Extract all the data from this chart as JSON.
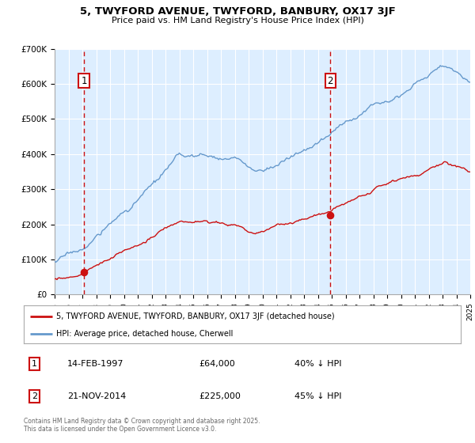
{
  "title": "5, TWYFORD AVENUE, TWYFORD, BANBURY, OX17 3JF",
  "subtitle": "Price paid vs. HM Land Registry's House Price Index (HPI)",
  "legend_line1": "5, TWYFORD AVENUE, TWYFORD, BANBURY, OX17 3JF (detached house)",
  "legend_line2": "HPI: Average price, detached house, Cherwell",
  "annotation1_label": "1",
  "annotation1_date": "14-FEB-1997",
  "annotation1_price": "£64,000",
  "annotation1_hpi": "40% ↓ HPI",
  "annotation2_label": "2",
  "annotation2_date": "21-NOV-2014",
  "annotation2_price": "£225,000",
  "annotation2_hpi": "45% ↓ HPI",
  "footer": "Contains HM Land Registry data © Crown copyright and database right 2025.\nThis data is licensed under the Open Government Licence v3.0.",
  "plot_bg_color": "#ddeeff",
  "grid_color": "#ffffff",
  "hpi_line_color": "#6699cc",
  "price_line_color": "#cc1111",
  "dashed_line_color": "#cc1111",
  "annotation_box_color": "#cc1111",
  "ylim_min": 0,
  "ylim_max": 700000,
  "year_start": 1995,
  "year_end": 2025,
  "purchase1_year": 1997.12,
  "purchase1_value": 64000,
  "purchase2_year": 2014.9,
  "purchase2_value": 225000,
  "yticks": [
    0,
    100000,
    200000,
    300000,
    400000,
    500000,
    600000,
    700000
  ],
  "ylabels": [
    "£0",
    "£100K",
    "£200K",
    "£300K",
    "£400K",
    "£500K",
    "£600K",
    "£700K"
  ]
}
